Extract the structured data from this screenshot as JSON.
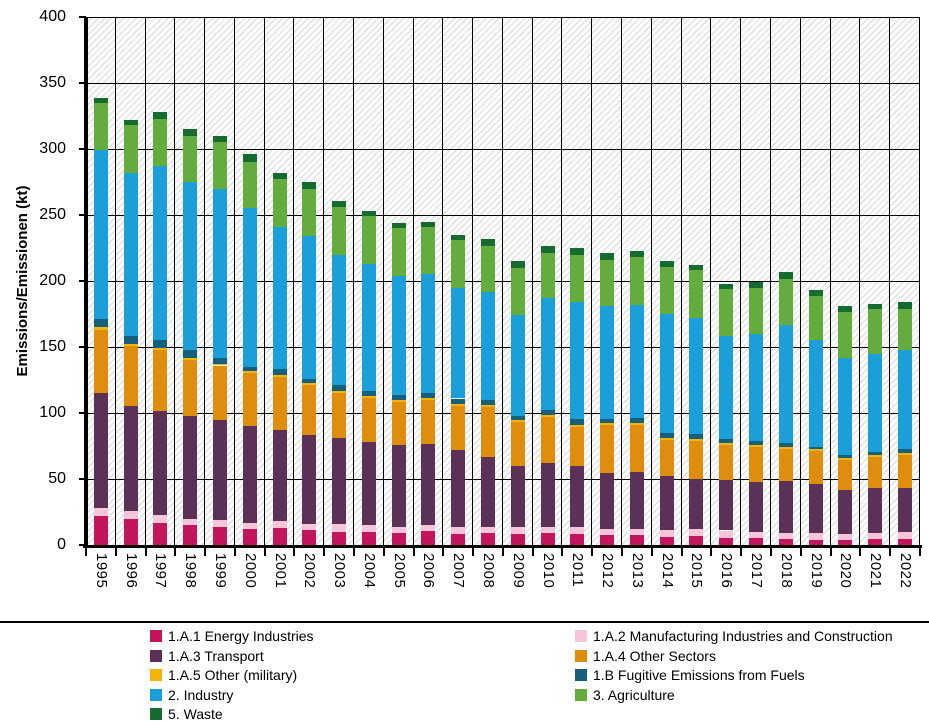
{
  "chart_data": {
    "type": "bar",
    "stacked": true,
    "title": "",
    "xlabel": "",
    "ylabel": "Emissions/Emissionen (kt)",
    "ylim": [
      0,
      400
    ],
    "y_tick_step": 50,
    "y_ticks": [
      0,
      50,
      100,
      150,
      200,
      250,
      300,
      350,
      400
    ],
    "grid": "horizontal-and-column-separators",
    "background": "diagonal-hatch",
    "legend_position": "bottom-two-columns",
    "categories": [
      "1995",
      "1996",
      "1997",
      "1998",
      "1999",
      "2000",
      "2001",
      "2002",
      "2003",
      "2004",
      "2005",
      "2006",
      "2007",
      "2008",
      "2009",
      "2010",
      "2011",
      "2012",
      "2013",
      "2014",
      "2015",
      "2016",
      "2017",
      "2018",
      "2019",
      "2020",
      "2021",
      "2022"
    ],
    "series": [
      {
        "name": "1.A.1 Energy Industries",
        "color": "#c2155b",
        "values": [
          22,
          20,
          17,
          15,
          14,
          12,
          13,
          11,
          10,
          10,
          9,
          10.5,
          8,
          9,
          8,
          9,
          8,
          7.5,
          7.5,
          6,
          6.5,
          5.5,
          5,
          4.5,
          4,
          3.5,
          4.5,
          4.5
        ]
      },
      {
        "name": "1.A.2 Manufacturing Industries and Construction",
        "color": "#f6c5d9",
        "values": [
          6,
          6,
          6,
          5,
          5,
          5,
          5,
          5,
          6,
          5.5,
          5,
          5,
          6,
          5,
          5.5,
          5,
          5.5,
          5,
          5,
          5.5,
          5.5,
          5.5,
          4.5,
          4.5,
          5,
          4.5,
          4.5,
          5
        ]
      },
      {
        "name": "1.A.3 Transport",
        "color": "#5b3157",
        "values": [
          87,
          79.5,
          78.5,
          78,
          76,
          73,
          69,
          67,
          65,
          62.5,
          62,
          61,
          58,
          53,
          46.5,
          48.5,
          46,
          42,
          42.5,
          40.5,
          38,
          38.5,
          38.5,
          39.5,
          37.5,
          34,
          34,
          34
        ]
      },
      {
        "name": "1.A.4 Other Sectors",
        "color": "#de8d0c",
        "values": [
          48,
          45,
          46,
          42,
          41,
          40,
          40,
          38,
          34,
          33.5,
          32,
          33.5,
          33.5,
          37.5,
          33,
          34.5,
          30,
          36.5,
          36,
          27.5,
          29,
          26.5,
          26.5,
          24.5,
          24.5,
          22.5,
          24,
          24.5
        ]
      },
      {
        "name": "1.A.5 Other (military)",
        "color": "#f3b50c",
        "values": [
          2,
          2,
          2,
          1.5,
          1.5,
          1.5,
          1.5,
          1.5,
          1.5,
          1.5,
          2,
          1.5,
          1.5,
          1.5,
          1.5,
          1.5,
          1.5,
          1.5,
          1.5,
          1.5,
          1.5,
          1.5,
          1.5,
          1.5,
          1.5,
          1.5,
          1.5,
          1.5
        ]
      },
      {
        "name": "1.B Fugitive Emissions from Fuels",
        "color": "#16607c",
        "values": [
          6,
          5.5,
          5.5,
          6,
          4.5,
          3.5,
          4.5,
          3.5,
          4.5,
          4,
          3.5,
          3.5,
          4,
          4,
          3.5,
          3.5,
          4.5,
          3,
          3.5,
          3.5,
          3.5,
          3,
          3,
          2.5,
          2,
          2,
          2,
          3.5
        ]
      },
      {
        "name": "2. Industry",
        "color": "#1a9fd9",
        "values": [
          128,
          124,
          132.5,
          127.5,
          128,
          120,
          108,
          108,
          99,
          96,
          90.5,
          90,
          84,
          82,
          76.5,
          85,
          88.5,
          85.5,
          86,
          90.5,
          88,
          78,
          81,
          90,
          80.5,
          74,
          74.5,
          74.5
        ]
      },
      {
        "name": "3. Agriculture",
        "color": "#64ac3e",
        "values": [
          36,
          36,
          35.5,
          35,
          35,
          35,
          36,
          36,
          36,
          36,
          36,
          36,
          36,
          34.5,
          35.5,
          34.5,
          36,
          35,
          36,
          35.5,
          36,
          35.5,
          35,
          34.5,
          33.5,
          34.5,
          33.5,
          31.5
        ]
      },
      {
        "name": "5. Waste",
        "color": "#156b30",
        "values": [
          4,
          4,
          5,
          5,
          5,
          6,
          5,
          5,
          5,
          4,
          4,
          4,
          4,
          5,
          5,
          5,
          5,
          5.5,
          5,
          4.5,
          4,
          4,
          4.5,
          5,
          4.5,
          4.5,
          4,
          5
        ]
      }
    ],
    "legend_columns": [
      [
        0,
        2,
        4,
        6,
        8
      ],
      [
        1,
        3,
        5,
        7
      ]
    ]
  }
}
